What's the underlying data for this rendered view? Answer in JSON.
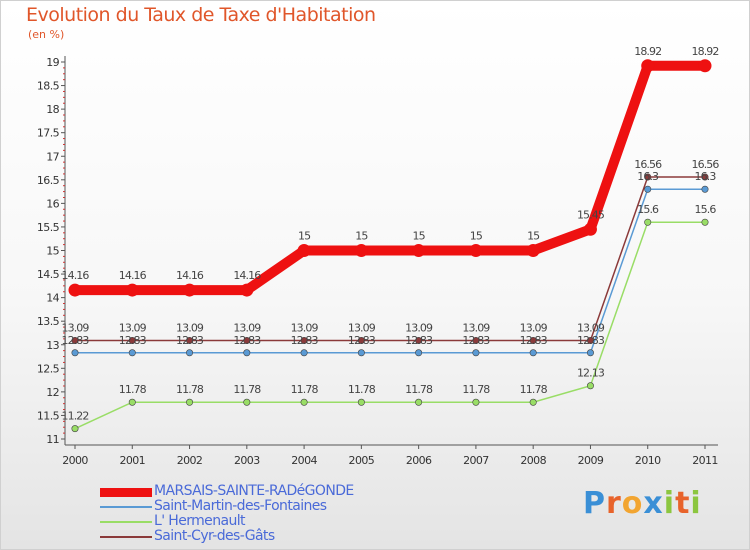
{
  "title": "Evolution du Taux de Taxe d'Habitation",
  "unit_label": "(en %)",
  "logo": {
    "letters": [
      "P",
      "r",
      "o",
      "x",
      "i",
      "t",
      "i"
    ],
    "colors": [
      "#3a8fd6",
      "#e8632b",
      "#f2a531",
      "#3a8fd6",
      "#8cc63f",
      "#e8632b",
      "#8cc63f"
    ]
  },
  "chart_data": {
    "type": "line",
    "title": "Evolution du Taux de Taxe d'Habitation",
    "ylabel": "(en %)",
    "xlabel": "",
    "ylim": [
      11,
      19
    ],
    "y_ticks": [
      "11",
      "11.5",
      "12",
      "12.5",
      "13",
      "13.5",
      "14",
      "14.5",
      "15",
      "15.5",
      "16",
      "16.5",
      "17",
      "17.5",
      "18",
      "18.5",
      "19"
    ],
    "x": [
      "2000",
      "2001",
      "2002",
      "2003",
      "2004",
      "2005",
      "2006",
      "2007",
      "2008",
      "2009",
      "2010",
      "2011"
    ],
    "grid": "none",
    "legend_position": "bottom-left",
    "series": [
      {
        "name": "Saint-Cyr-des-Gâts",
        "color": "#8b3a3a",
        "values": [
          13.09,
          13.09,
          13.09,
          13.09,
          13.09,
          13.09,
          13.09,
          13.09,
          13.09,
          13.09,
          16.56,
          16.56
        ],
        "labels": [
          "13.09",
          "13.09",
          "13.09",
          "13.09",
          "13.09",
          "13.09",
          "13.09",
          "13.09",
          "13.09",
          "13.09",
          "16.56",
          "16.56"
        ]
      },
      {
        "name": "Saint-Martin-des-Fontaines",
        "color": "#5a9ad4",
        "values": [
          12.83,
          12.83,
          12.83,
          12.83,
          12.83,
          12.83,
          12.83,
          12.83,
          12.83,
          12.83,
          16.3,
          16.3
        ],
        "labels": [
          "12.83",
          "12.83",
          "12.83",
          "12.83",
          "12.83",
          "12.83",
          "12.83",
          "12.83",
          "12.83",
          "12.83",
          "16.3",
          "16.3"
        ]
      },
      {
        "name": "L' Hermenault",
        "color": "#99dd66",
        "values": [
          11.22,
          11.78,
          11.78,
          11.78,
          11.78,
          11.78,
          11.78,
          11.78,
          11.78,
          12.13,
          15.6,
          15.6
        ],
        "labels": [
          "11.22",
          "11.78",
          "11.78",
          "11.78",
          "11.78",
          "11.78",
          "11.78",
          "11.78",
          "11.78",
          "12.13",
          "15.6",
          "15.6"
        ]
      },
      {
        "name": "MARSAIS-SAINTE-RADéGONDE",
        "color": "#ee1111",
        "emphasis": true,
        "values": [
          14.16,
          14.16,
          14.16,
          14.16,
          15,
          15,
          15,
          15,
          15,
          15.45,
          18.92,
          18.92
        ],
        "labels": [
          "14.16",
          "14.16",
          "14.16",
          "14.16",
          "15",
          "15",
          "15",
          "15",
          "15",
          "15.45",
          "18.92",
          "18.92"
        ]
      }
    ],
    "legend": [
      {
        "name": "MARSAIS-SAINTE-RADéGONDE",
        "color": "#ee1111"
      },
      {
        "name": "Saint-Martin-des-Fontaines",
        "color": "#5a9ad4"
      },
      {
        "name": "L' Hermenault",
        "color": "#99dd66"
      },
      {
        "name": "Saint-Cyr-des-Gâts",
        "color": "#8b3a3a"
      }
    ]
  }
}
